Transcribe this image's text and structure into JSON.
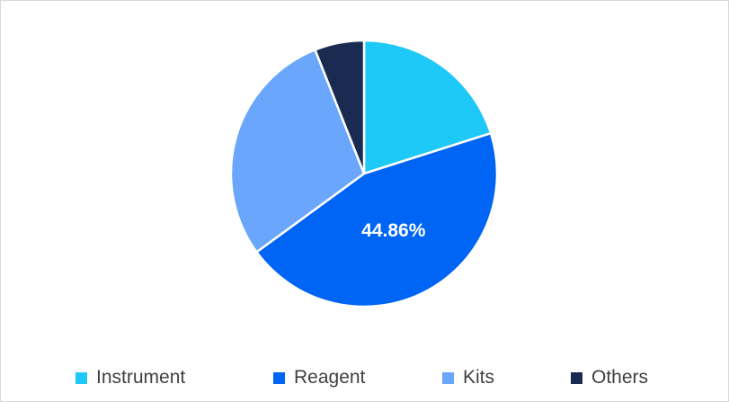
{
  "chart_data": {
    "type": "pie",
    "categories": [
      "Instrument",
      "Reagent",
      "Kits",
      "Others"
    ],
    "values": [
      20.1,
      44.86,
      29.04,
      6.0
    ],
    "colors": [
      "#1ec8f7",
      "#0064f5",
      "#6aa6fb",
      "#1a2b52"
    ],
    "data_labels": [
      "",
      "44.86%",
      "",
      ""
    ],
    "legend_position": "bottom",
    "start_angle_deg": 0,
    "direction": "clockwise"
  },
  "legend": {
    "items": [
      {
        "label": "Instrument",
        "color": "#1ec8f7"
      },
      {
        "label": "Reagent",
        "color": "#0064f5"
      },
      {
        "label": "Kits",
        "color": "#6aa6fb"
      },
      {
        "label": "Others",
        "color": "#1a2b52"
      }
    ]
  }
}
